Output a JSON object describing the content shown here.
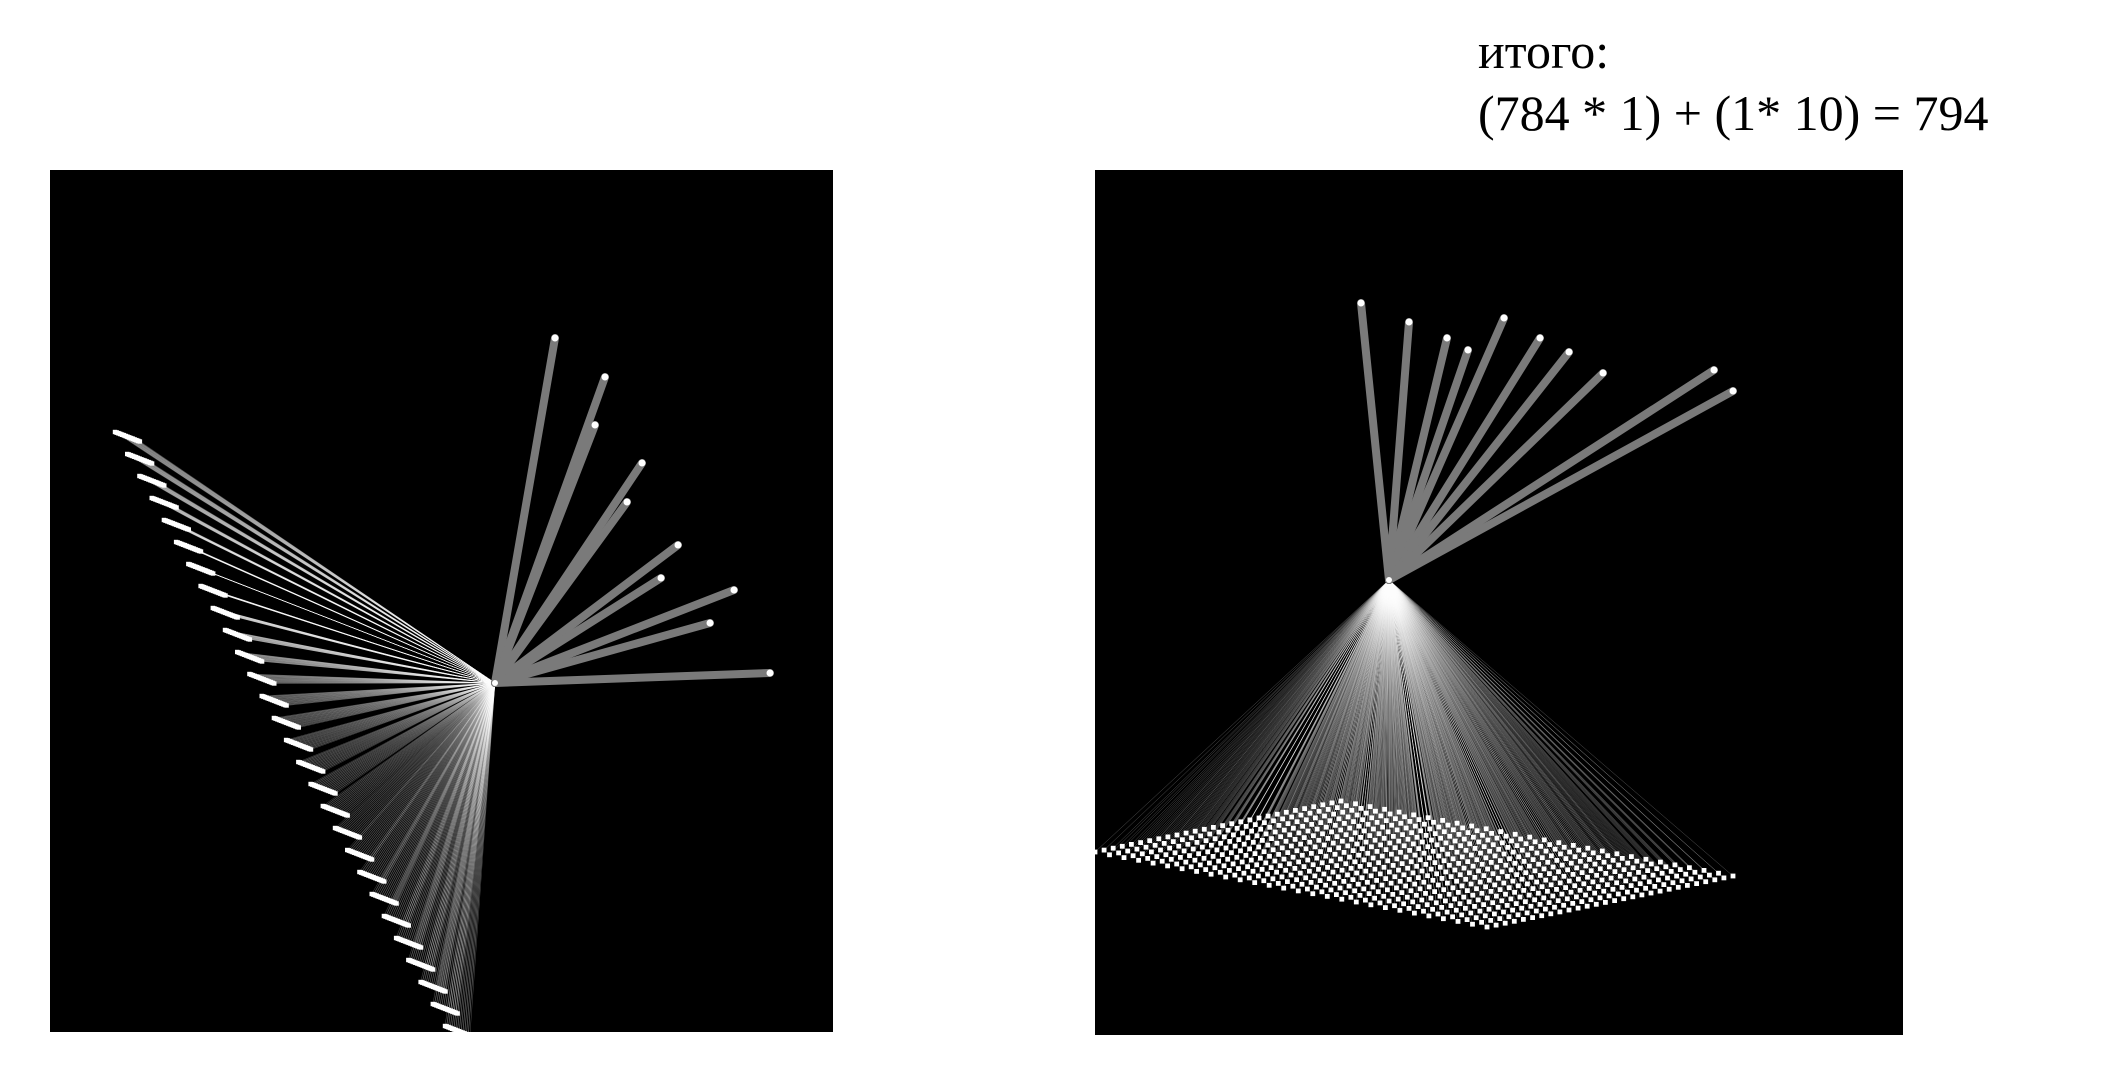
{
  "caption": {
    "label": "итого:",
    "formula": "(784 * 1) + (1* 10) = 794"
  },
  "network": {
    "input_neurons": 784,
    "hidden_neurons": 1,
    "output_neurons": 10,
    "total_connections": 794
  },
  "colors": {
    "page_background": "#ffffff",
    "panel_background": "#000000",
    "node": "#ffffff",
    "input_connection": "#ffffff",
    "output_connection": "#7a7a7a"
  }
}
